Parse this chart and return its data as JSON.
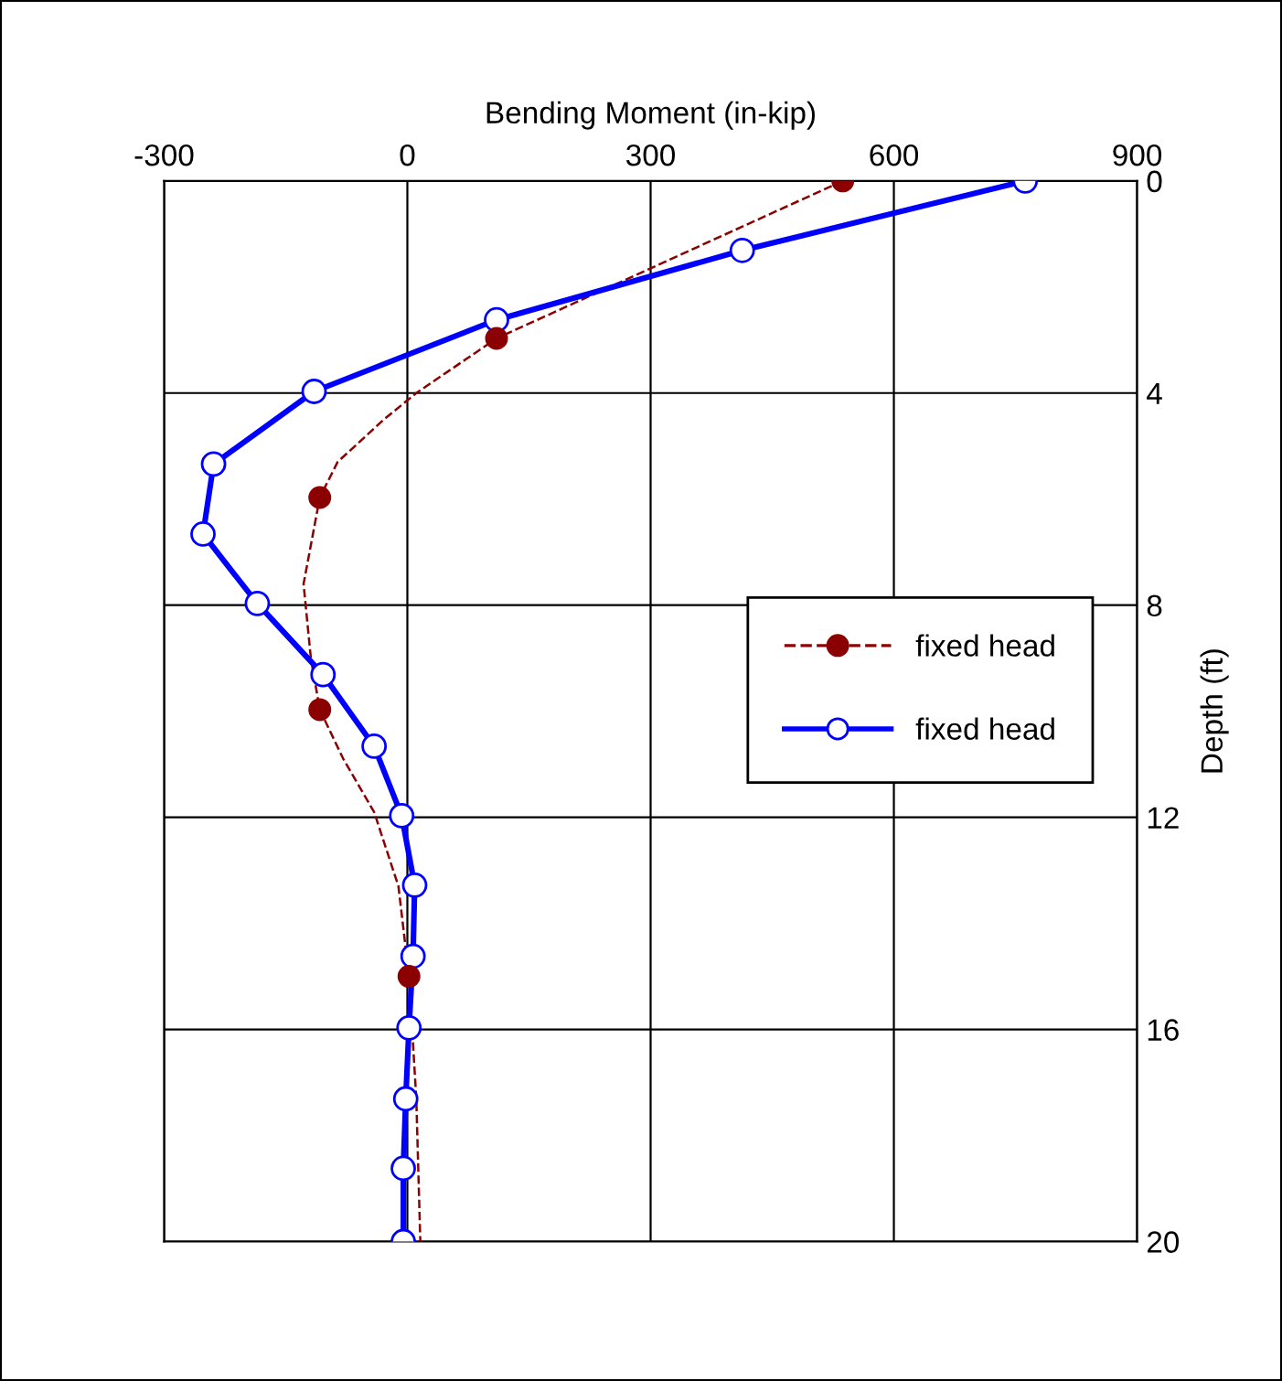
{
  "chart_data": {
    "type": "line",
    "xlabel": "Bending Moment (in-kip)",
    "ylabel": "Depth (ft)",
    "xlim": [
      -300,
      900
    ],
    "xticks": [
      -300,
      0,
      300,
      600,
      900
    ],
    "ylim": [
      20,
      0
    ],
    "yticks": [
      0,
      4,
      8,
      12,
      16,
      20
    ],
    "grid": true,
    "legend": "right",
    "series": [
      {
        "name": "fixed head",
        "color": "#8b0000",
        "line_style": "dashed",
        "marker": "none",
        "x": [
          537,
          110,
          11,
          -29,
          -86,
          -108,
          -128,
          -119,
          -108,
          -79,
          -41,
          -11,
          2,
          11,
          16
        ],
        "values": [
          0,
          2.97,
          4,
          4.5,
          5.3,
          5.97,
          7.6,
          9.0,
          9.97,
          10.9,
          11.9,
          13.3,
          15.0,
          17.3,
          20
        ]
      },
      {
        "type": "scatter",
        "color": "#8b0000",
        "marker": "circle",
        "x": [
          537,
          110,
          -108,
          -108,
          2
        ],
        "values": [
          0,
          2.97,
          5.97,
          9.97,
          15.0
        ]
      },
      {
        "name": "fixed head",
        "color": "#0000ff",
        "line_style": "solid",
        "marker": "circle",
        "x": [
          762,
          413,
          110,
          -115,
          -239,
          -252,
          -185,
          -104,
          -41,
          -7,
          9,
          7,
          2,
          -2,
          -5,
          -5
        ],
        "values": [
          0,
          1.31,
          2.62,
          3.97,
          5.34,
          6.66,
          7.97,
          9.31,
          10.66,
          11.97,
          13.28,
          14.62,
          15.97,
          17.31,
          18.62,
          20
        ]
      }
    ]
  }
}
